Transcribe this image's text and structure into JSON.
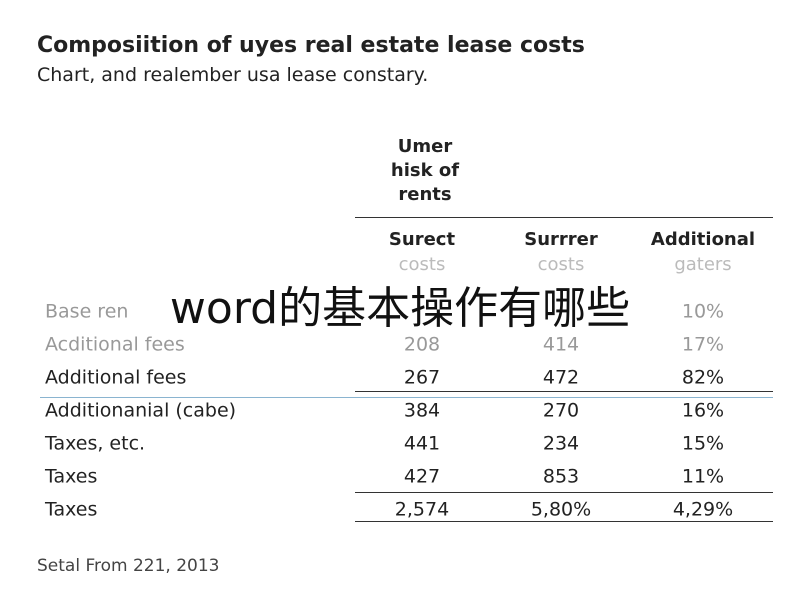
{
  "header": {
    "title": "Composiition of uyes real estate lease costs",
    "subtitle": "Chart, and realember usa lease constary."
  },
  "table": {
    "group_header": [
      "Umer",
      "hisk of",
      "rents"
    ],
    "columns": [
      [
        "Surect",
        "costs"
      ],
      [
        "Surrrer",
        "costs"
      ],
      [
        "Additional",
        "gaters"
      ]
    ],
    "rows": [
      [
        "Base ren",
        null,
        null,
        "10%"
      ],
      [
        "Acditional fees",
        "208",
        "414",
        "17%"
      ],
      [
        "Additional fees",
        "267",
        "472",
        "82%"
      ],
      [
        "Additionanial (cabe)",
        "384",
        "270",
        "16%"
      ],
      [
        "Taxes, etc.",
        "441",
        "234",
        "15%"
      ],
      [
        "Taxes",
        "427",
        "853",
        "11%"
      ],
      [
        "Taxes",
        "2,574",
        "5,80%",
        "4,29%"
      ]
    ]
  },
  "footer": "Setal From 221, 2013",
  "overlay": "word的基本操作有哪些"
}
